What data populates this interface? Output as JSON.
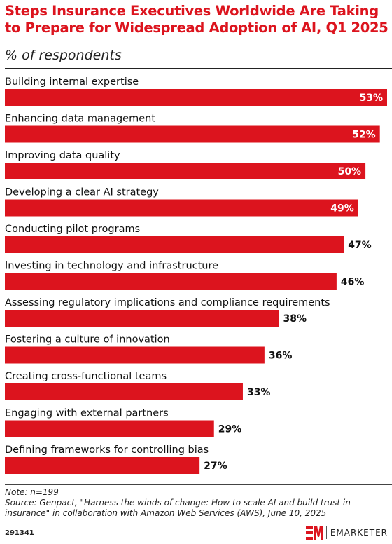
{
  "header": {
    "title": "Steps Insurance Executives Worldwide Are Taking to Prepare for Widespread Adoption of AI, Q1 2025",
    "subtitle": "% of respondents"
  },
  "chart_data": {
    "type": "bar",
    "orientation": "horizontal",
    "title": "Steps Insurance Executives Worldwide Are Taking to Prepare for Widespread Adoption of AI, Q1 2025",
    "subtitle": "% of respondents",
    "categories": [
      "Building internal expertise",
      "Enhancing data management",
      "Improving data quality",
      "Developing a clear AI strategy",
      "Conducting pilot programs",
      "Investing in technology and infrastructure",
      "Assessing regulatory implications and compliance requirements",
      "Fostering a culture of innovation",
      "Creating cross-functional teams",
      "Engaging with external partners",
      "Defining frameworks for controlling bias"
    ],
    "values": [
      53,
      52,
      50,
      49,
      47,
      46,
      38,
      36,
      33,
      29,
      27
    ],
    "value_labels": [
      "53%",
      "52%",
      "50%",
      "49%",
      "47%",
      "46%",
      "38%",
      "36%",
      "33%",
      "29%",
      "27%"
    ],
    "unit": "%",
    "bar_color": "#dc141e",
    "xlim": [
      0,
      53
    ],
    "grid": false,
    "legend": "none"
  },
  "footer": {
    "note": "Note: n=199",
    "source": "Source: Genpact, \"Harness the winds of change: How to scale AI and build trust in insurance\" in collaboration with Amazon Web Services (AWS), June 10, 2025",
    "chart_id": "291341",
    "brand": "EMARKETER",
    "brand_icon": "emarketer-logo-icon"
  }
}
